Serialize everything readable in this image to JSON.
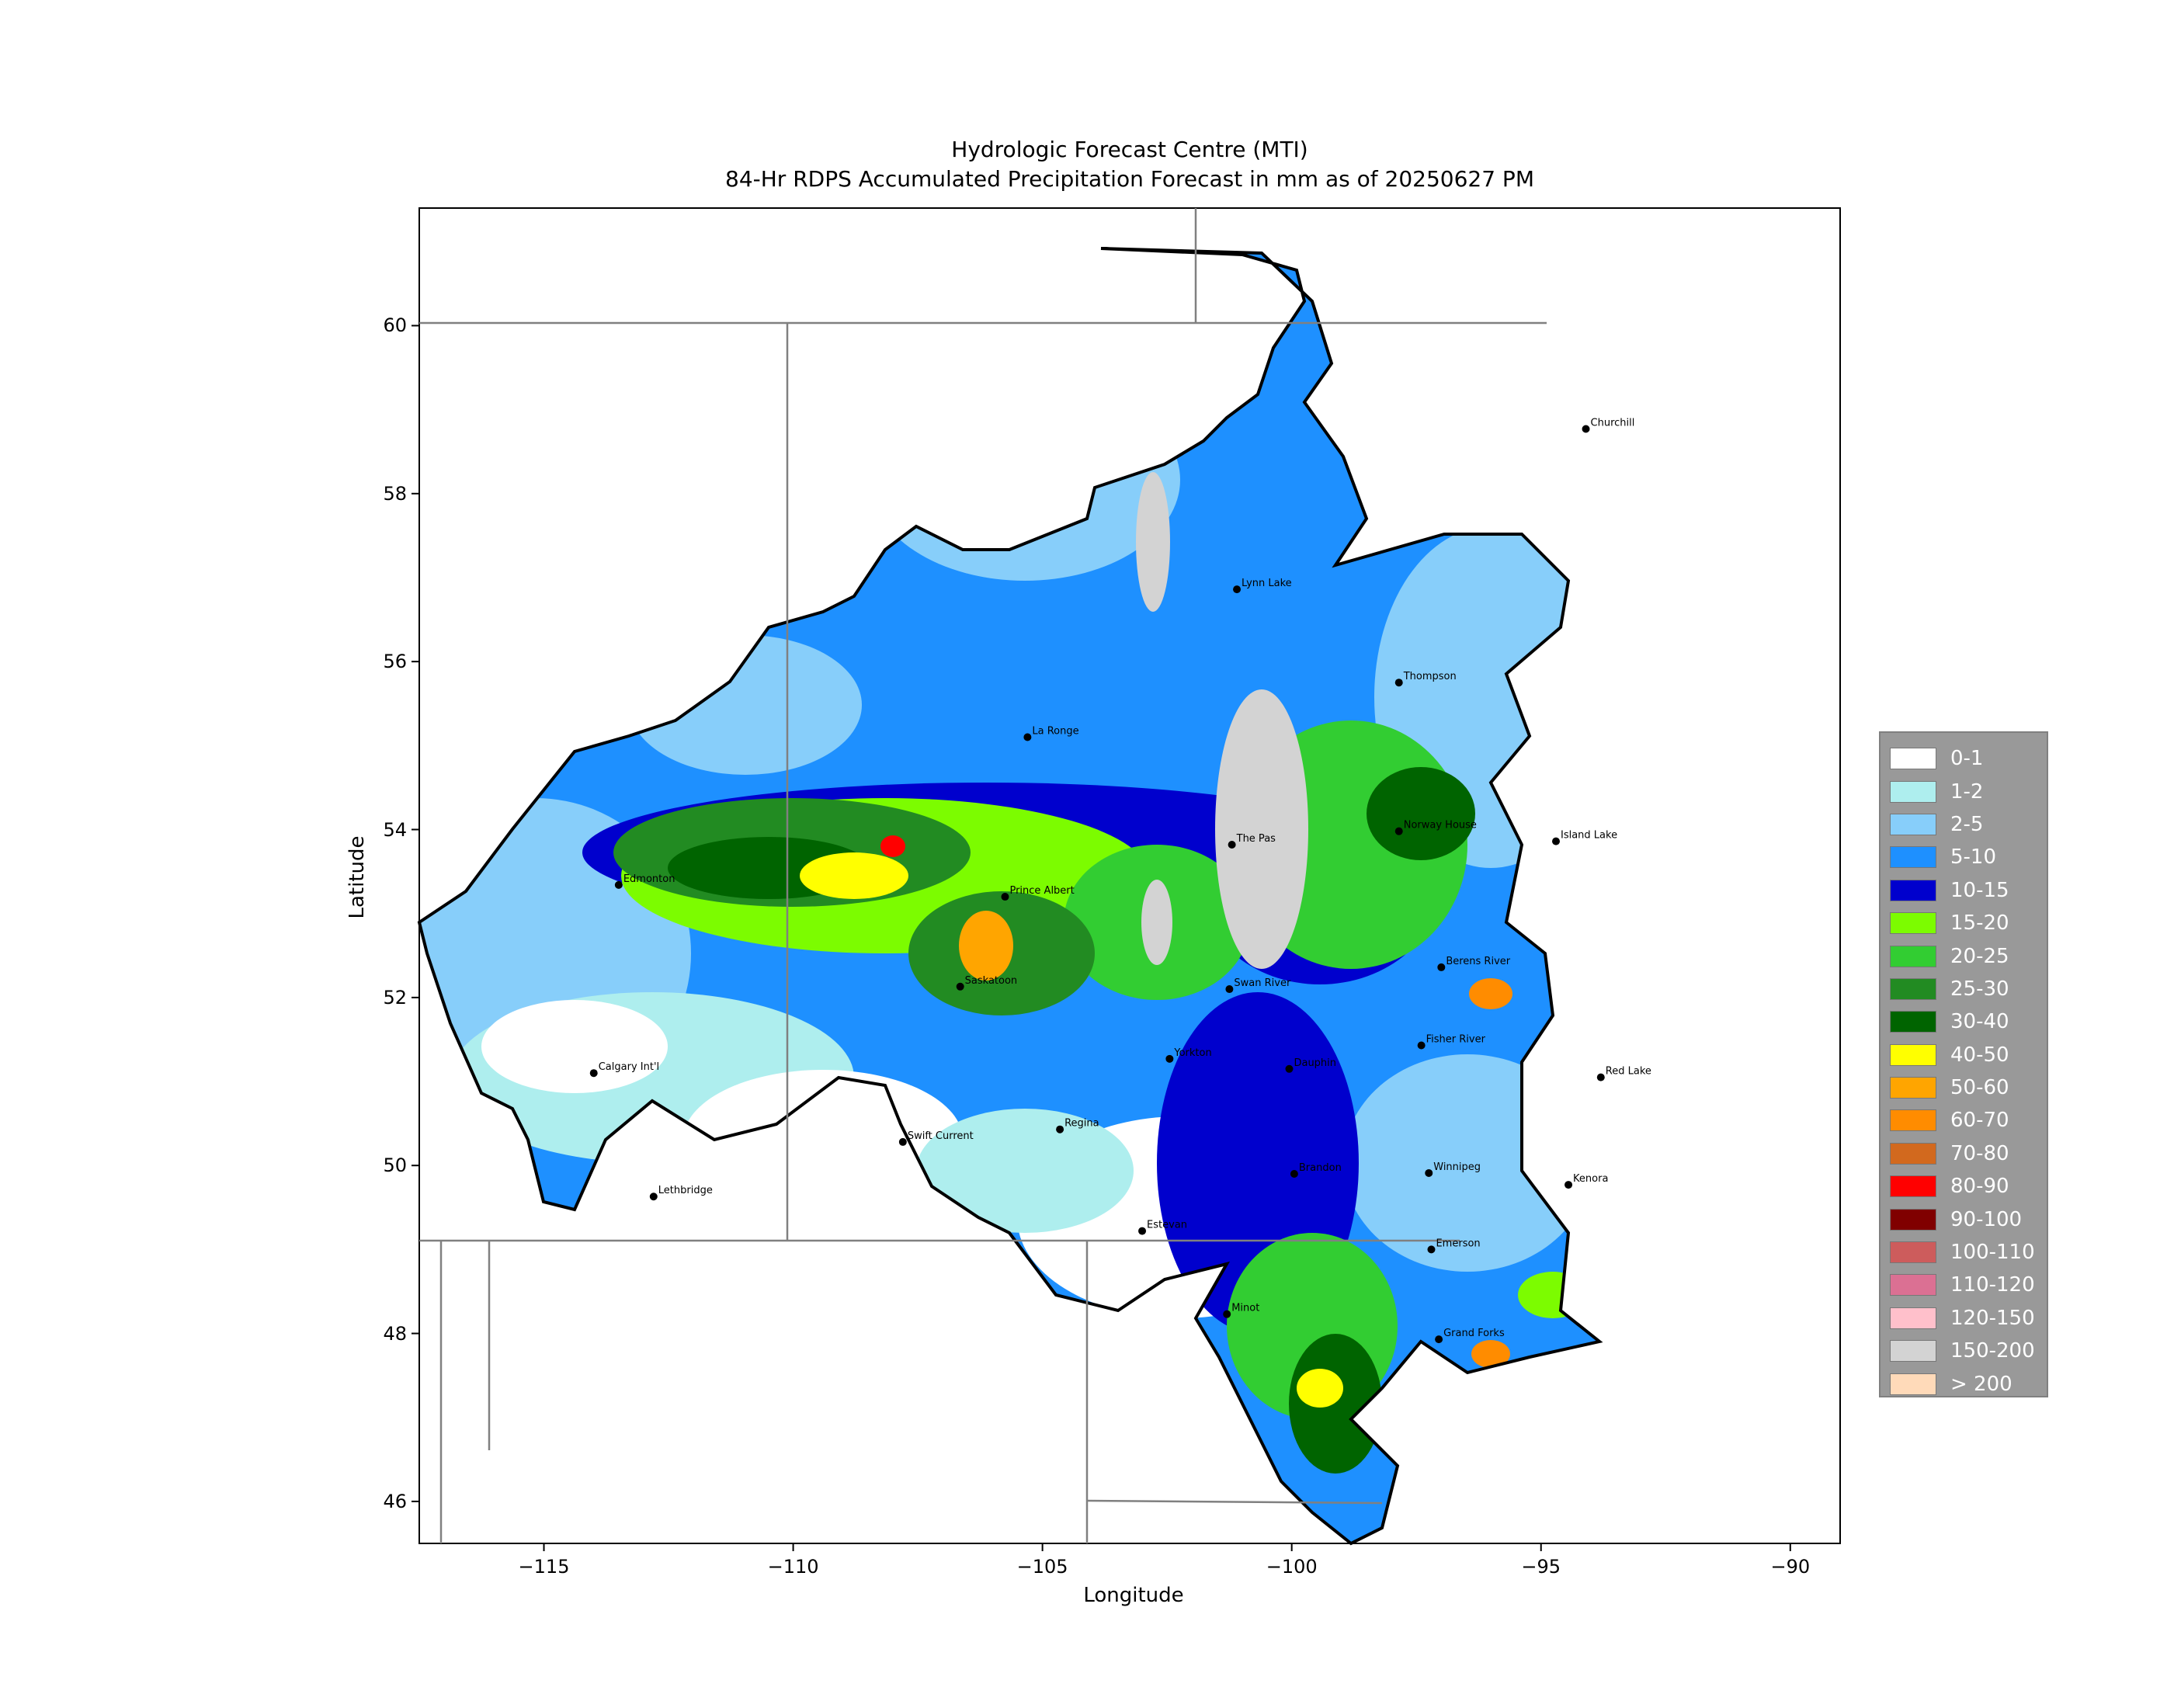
{
  "title_line1": "Hydrologic Forecast Centre (MTI)",
  "title_line2": "84-Hr RDPS Accumulated Precipitation Forecast in mm as of 20250627 PM",
  "x_axis": {
    "label": "Longitude",
    "ticks": [
      "−115",
      "−110",
      "−105",
      "−100",
      "−95",
      "−90"
    ],
    "range": [
      -117.5,
      -89.0
    ]
  },
  "y_axis": {
    "label": "Latitude",
    "ticks": [
      "46",
      "48",
      "50",
      "52",
      "54",
      "56",
      "58",
      "60"
    ],
    "range": [
      45.5,
      61.4
    ]
  },
  "legend": {
    "position": "right",
    "items": [
      {
        "label": "0-1",
        "color": "#ffffff"
      },
      {
        "label": "1-2",
        "color": "#aeeeee"
      },
      {
        "label": "2-5",
        "color": "#87cefa"
      },
      {
        "label": "5-10",
        "color": "#1e90ff"
      },
      {
        "label": "10-15",
        "color": "#0000cd"
      },
      {
        "label": "15-20",
        "color": "#7cfc00"
      },
      {
        "label": "20-25",
        "color": "#32cd32"
      },
      {
        "label": "25-30",
        "color": "#228b22"
      },
      {
        "label": "30-40",
        "color": "#006400"
      },
      {
        "label": "40-50",
        "color": "#ffff00"
      },
      {
        "label": "50-60",
        "color": "#ffa500"
      },
      {
        "label": "60-70",
        "color": "#ff8c00"
      },
      {
        "label": "70-80",
        "color": "#d2691e"
      },
      {
        "label": "80-90",
        "color": "#ff0000"
      },
      {
        "label": "90-100",
        "color": "#800000"
      },
      {
        "label": "100-110",
        "color": "#cd5c5c"
      },
      {
        "label": "110-120",
        "color": "#db7093"
      },
      {
        "label": "120-150",
        "color": "#ffc0cb"
      },
      {
        "label": "150-200",
        "color": "#d3d3d3"
      },
      {
        "label": "> 200",
        "color": "#ffdab9"
      }
    ]
  },
  "cities": [
    {
      "name": "Churchill",
      "lon": -94.1,
      "lat": 58.77
    },
    {
      "name": "Lynn Lake",
      "lon": -101.1,
      "lat": 56.86
    },
    {
      "name": "Thompson",
      "lon": -97.85,
      "lat": 55.75
    },
    {
      "name": "La Ronge",
      "lon": -105.3,
      "lat": 55.1
    },
    {
      "name": "Edmonton",
      "lon": -113.5,
      "lat": 53.34
    },
    {
      "name": "Prince Albert",
      "lon": -105.75,
      "lat": 53.2
    },
    {
      "name": "The Pas",
      "lon": -101.2,
      "lat": 53.82
    },
    {
      "name": "Norway House",
      "lon": -97.85,
      "lat": 53.98
    },
    {
      "name": "Island Lake",
      "lon": -94.7,
      "lat": 53.86
    },
    {
      "name": "Saskatoon",
      "lon": -106.65,
      "lat": 52.13
    },
    {
      "name": "Swan River",
      "lon": -101.25,
      "lat": 52.1
    },
    {
      "name": "Berens River",
      "lon": -97.0,
      "lat": 52.36
    },
    {
      "name": "Fisher River",
      "lon": -97.4,
      "lat": 51.43
    },
    {
      "name": "Calgary Int'l",
      "lon": -114.0,
      "lat": 51.1
    },
    {
      "name": "Yorkton",
      "lon": -102.45,
      "lat": 51.27
    },
    {
      "name": "Dauphin",
      "lon": -100.05,
      "lat": 51.15
    },
    {
      "name": "Red Lake",
      "lon": -93.8,
      "lat": 51.05
    },
    {
      "name": "Swift Current",
      "lon": -107.8,
      "lat": 50.28
    },
    {
      "name": "Regina",
      "lon": -104.65,
      "lat": 50.43
    },
    {
      "name": "Brandon",
      "lon": -99.95,
      "lat": 49.9
    },
    {
      "name": "Winnipeg",
      "lon": -97.25,
      "lat": 49.91
    },
    {
      "name": "Kenora",
      "lon": -94.45,
      "lat": 49.77
    },
    {
      "name": "Lethbridge",
      "lon": -112.8,
      "lat": 49.63
    },
    {
      "name": "Estevan",
      "lon": -103.0,
      "lat": 49.22
    },
    {
      "name": "Emerson",
      "lon": -97.2,
      "lat": 49.0
    },
    {
      "name": "Minot",
      "lon": -101.3,
      "lat": 48.23
    },
    {
      "name": "Grand Forks",
      "lon": -97.05,
      "lat": 47.93
    }
  ]
}
